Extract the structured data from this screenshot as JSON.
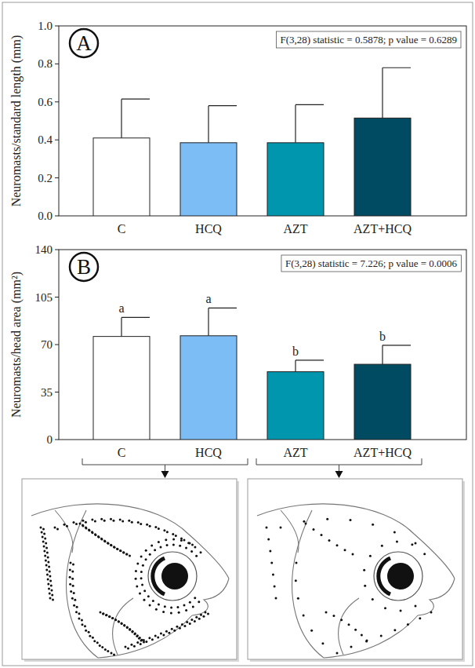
{
  "chart_data": [
    {
      "type": "bar",
      "panel": "A",
      "annotation": "F(3,28) statistic = 0.5878; p value = 0.6289",
      "y_label": "Neuromasts/standard length (mm)",
      "categories": [
        "C",
        "HCQ",
        "AZT",
        "AZT+HCQ"
      ],
      "values": [
        0.41,
        0.385,
        0.385,
        0.515
      ],
      "errors": [
        0.205,
        0.195,
        0.2,
        0.265
      ],
      "colors": [
        "#ffffff",
        "#7cbdf5",
        "#0096ae",
        "#004b61"
      ],
      "ylim": [
        0,
        1
      ],
      "yticks": [
        {
          "value": 0,
          "label": "0.0"
        },
        {
          "value": 0.2,
          "label": "0.2"
        },
        {
          "value": 0.4,
          "label": "0.4"
        },
        {
          "value": 0.6,
          "label": "0.6"
        },
        {
          "value": 0.8,
          "label": "0.8"
        },
        {
          "value": 1,
          "label": "1.0"
        }
      ]
    },
    {
      "type": "bar",
      "panel": "B",
      "annotation": "F(3,28) statistic = 7.226; p value = 0.0006",
      "y_label": "Neuromasts/head area (mm²)",
      "categories": [
        "C",
        "HCQ",
        "AZT",
        "AZT+HCQ"
      ],
      "values": [
        76,
        76.5,
        50,
        55.5
      ],
      "errors": [
        14,
        20.5,
        8.5,
        14
      ],
      "significance": [
        "a",
        "a",
        "b",
        "b"
      ],
      "colors": [
        "#ffffff",
        "#7cbdf5",
        "#0096ae",
        "#004b61"
      ],
      "ylim": [
        0,
        140
      ],
      "yticks": [
        0,
        35,
        70,
        105,
        140
      ]
    }
  ]
}
